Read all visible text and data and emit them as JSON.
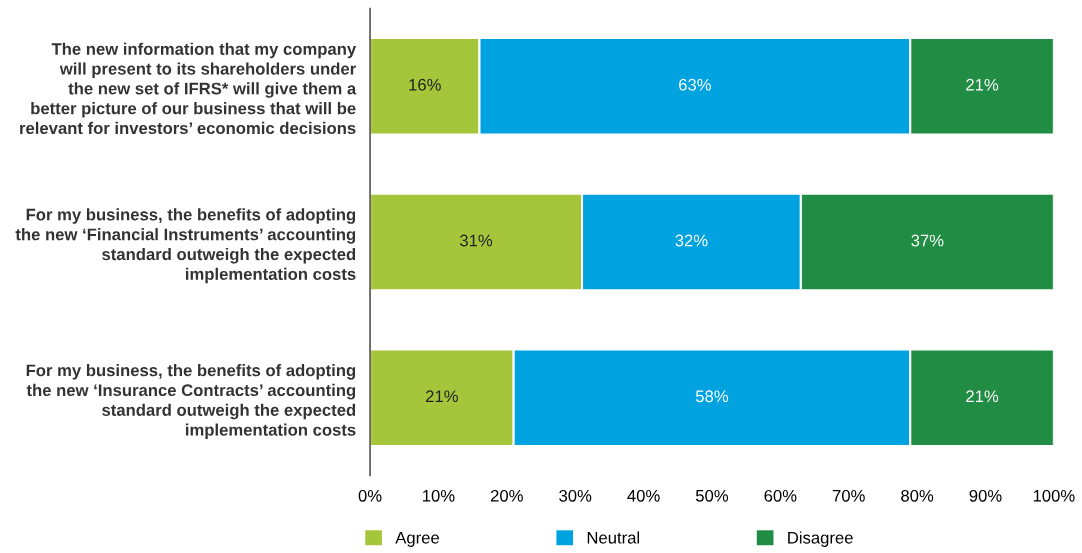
{
  "chart_data": {
    "type": "bar",
    "orientation": "horizontal",
    "stacked": true,
    "categories": [
      "The new information that my company\nwill present to its shareholders under\nthe new set of IFRS* will give them a\nbetter picture of our business that will be\nrelevant for investors’ economic decisions",
      "For my business, the benefits of adopting\nthe new ‘Financial Instruments’ accounting\nstandard outweigh the expected\nimplementation costs",
      "For my business, the benefits of adopting\nthe new ‘Insurance Contracts’ accounting\nstandard outweigh the expected\nimplementation costs"
    ],
    "series": [
      {
        "name": "Agree",
        "color": "#a5c63b",
        "values": [
          16,
          31,
          21
        ],
        "value_labels": [
          "16%",
          "31%",
          "21%"
        ]
      },
      {
        "name": "Neutral",
        "color": "#00a3e0",
        "values": [
          63,
          32,
          58
        ],
        "value_labels": [
          "63%",
          "32%",
          "58%"
        ]
      },
      {
        "name": "Disagree",
        "color": "#218c44",
        "values": [
          21,
          37,
          21
        ],
        "value_labels": [
          "21%",
          "37%",
          "21%"
        ]
      }
    ],
    "xlim": [
      0,
      100
    ],
    "xticks": [
      {
        "value": 0,
        "label": "0%"
      },
      {
        "value": 10,
        "label": "10%"
      },
      {
        "value": 20,
        "label": "20%"
      },
      {
        "value": 30,
        "label": "30%"
      },
      {
        "value": 40,
        "label": "40%"
      },
      {
        "value": 50,
        "label": "50%"
      },
      {
        "value": 60,
        "label": "60%"
      },
      {
        "value": 70,
        "label": "70%"
      },
      {
        "value": 80,
        "label": "80%"
      },
      {
        "value": 90,
        "label": "90%"
      },
      {
        "value": 100,
        "label": "100%"
      }
    ],
    "grid": false,
    "legend": "bottom"
  }
}
